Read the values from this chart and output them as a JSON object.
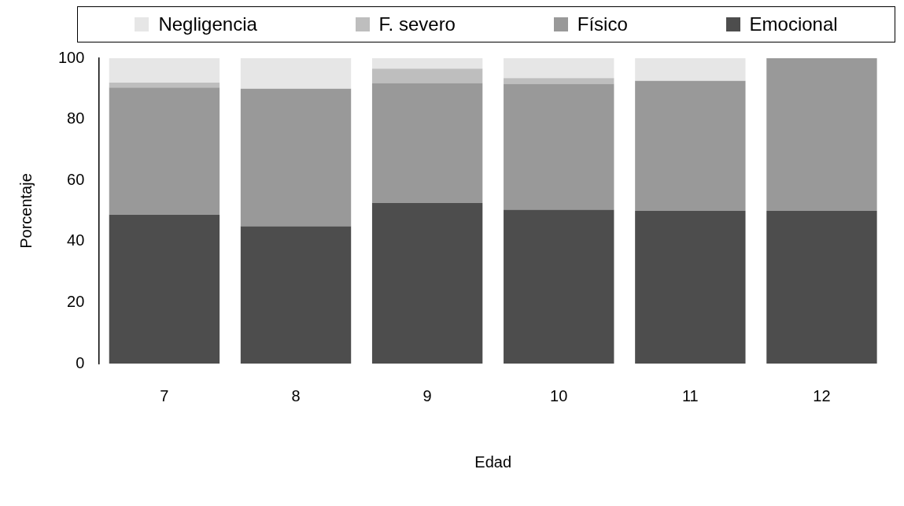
{
  "chart_data": {
    "type": "bar",
    "xlabel": "Edad",
    "ylabel": "Porcentaje",
    "categories": [
      "7",
      "8",
      "9",
      "10",
      "11",
      "12"
    ],
    "series": [
      {
        "name": "Emocional",
        "color": "#4d4d4d",
        "values": [
          48.8,
          45,
          52.6,
          50.4,
          50,
          50
        ]
      },
      {
        "name": "Físico",
        "color": "#999999",
        "values": [
          41.6,
          45,
          39.3,
          41.2,
          42.6,
          50
        ]
      },
      {
        "name": "F. severo",
        "color": "#bebebe",
        "values": [
          1.6,
          0,
          4.7,
          1.9,
          0,
          0
        ]
      },
      {
        "name": "Negligencia",
        "color": "#e6e6e6",
        "values": [
          8,
          10,
          3.4,
          6.5,
          7.4,
          0
        ]
      }
    ],
    "stacked": true,
    "ylim": [
      0,
      100
    ],
    "yticks": [
      0,
      20,
      40,
      60,
      80,
      100
    ],
    "grid": false,
    "legend": "top"
  }
}
